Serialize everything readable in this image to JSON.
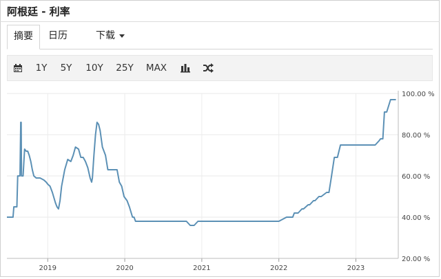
{
  "page": {
    "title": "阿根廷 - 利率"
  },
  "tabs": [
    {
      "label": "摘要"
    },
    {
      "label": "日历"
    },
    {
      "label": "下载"
    }
  ],
  "toolbar": {
    "calendar_icon": "calendar-icon",
    "ranges": [
      "1Y",
      "5Y",
      "10Y",
      "25Y",
      "MAX"
    ],
    "bar_chart_icon": "bar-chart-icon",
    "shuffle_icon": "shuffle-icon"
  },
  "chart_data": {
    "type": "line",
    "line_color": "#5b90b5",
    "grid": true,
    "xlim": [
      2018.47,
      2023.55
    ],
    "ylim": [
      20,
      100
    ],
    "y_ticks": [
      {
        "value": 100,
        "label": "100.00 %"
      },
      {
        "value": 80,
        "label": "80.00 %"
      },
      {
        "value": 60,
        "label": "60.00 %"
      },
      {
        "value": 40,
        "label": "40.00 %"
      },
      {
        "value": 20,
        "label": "20.00 %"
      }
    ],
    "x_ticks": [
      {
        "value": 2019,
        "label": "2019"
      },
      {
        "value": 2020,
        "label": "2020"
      },
      {
        "value": 2021,
        "label": "2021"
      },
      {
        "value": 2022,
        "label": "2022"
      },
      {
        "value": 2023,
        "label": "2023"
      }
    ],
    "series": [
      {
        "x": [
          2018.47,
          2018.55,
          2018.56,
          2018.6,
          2018.61,
          2018.64,
          2018.65,
          2018.655,
          2018.66,
          2018.68,
          2018.7,
          2018.72,
          2018.74,
          2018.76,
          2018.78,
          2018.8,
          2018.82,
          2018.85,
          2018.9,
          2018.95,
          2018.98,
          2019.0,
          2019.03,
          2019.06,
          2019.1,
          2019.12,
          2019.14,
          2019.16,
          2019.18,
          2019.22,
          2019.26,
          2019.3,
          2019.33,
          2019.36,
          2019.4,
          2019.43,
          2019.46,
          2019.49,
          2019.52,
          2019.55,
          2019.57,
          2019.58,
          2019.6,
          2019.62,
          2019.64,
          2019.66,
          2019.68,
          2019.71,
          2019.75,
          2019.78,
          2019.82,
          2019.86,
          2019.9,
          2019.93,
          2019.96,
          2019.99,
          2020.03,
          2020.06,
          2020.1,
          2020.12,
          2020.14,
          2020.2,
          2020.4,
          2020.6,
          2020.8,
          2020.85,
          2020.9,
          2020.95,
          2021.2,
          2021.5,
          2021.8,
          2022.0,
          2022.1,
          2022.12,
          2022.18,
          2022.2,
          2022.25,
          2022.3,
          2022.32,
          2022.38,
          2022.4,
          2022.45,
          2022.47,
          2022.52,
          2022.55,
          2022.62,
          2022.65,
          2022.68,
          2022.72,
          2022.76,
          2022.8,
          2023.0,
          2023.15,
          2023.2,
          2023.25,
          2023.3,
          2023.32,
          2023.35,
          2023.37,
          2023.4,
          2023.45,
          2023.52
        ],
        "y": [
          40,
          40,
          45,
          45,
          60,
          60,
          86,
          86,
          60,
          60,
          73,
          72,
          72,
          70,
          67,
          63,
          60,
          59,
          59,
          58,
          57,
          56,
          55,
          52,
          47,
          45,
          44,
          48,
          55,
          63,
          68,
          67,
          70,
          74,
          73,
          69,
          69,
          67,
          64,
          59,
          57,
          59,
          70,
          80,
          86,
          85,
          82,
          74,
          70,
          63,
          63,
          63,
          63,
          57,
          55,
          50,
          48,
          45,
          40,
          40,
          38,
          38,
          38,
          38,
          38,
          36,
          36,
          38,
          38,
          38,
          38,
          38,
          40,
          40,
          40,
          42,
          42,
          44,
          44,
          46,
          46,
          48,
          48,
          50,
          50,
          52,
          52,
          59,
          69,
          69,
          75,
          75,
          75,
          75,
          75,
          77,
          78,
          78,
          91,
          91,
          97,
          97
        ]
      }
    ]
  }
}
